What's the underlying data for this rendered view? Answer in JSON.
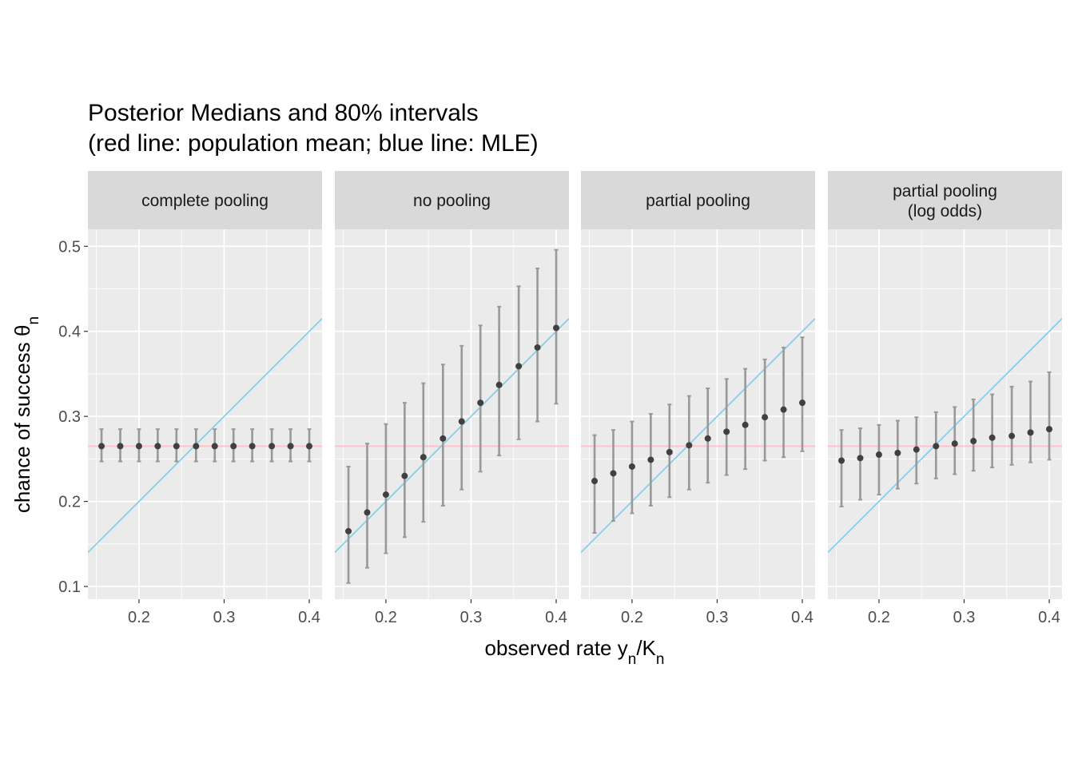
{
  "title": {
    "line1": "Posterior Medians and 80% intervals",
    "line2": "(red line: population mean;  blue line: MLE)"
  },
  "axes": {
    "xlabel": {
      "main": "observed rate y",
      "sub1": "n",
      "mid": "/K",
      "sub2": "n"
    },
    "ylabel": {
      "main": "chance of success θ",
      "sub": "n"
    }
  },
  "colors": {
    "panel_bg": "#ebebeb",
    "strip_bg": "#d9d9d9",
    "grid": "#ffffff",
    "population_mean_line": "#ffc0cb",
    "mle_line": "#87ceeb",
    "interval": "#999999",
    "point": "#404040"
  },
  "chart_data": {
    "type": "scatter",
    "facet_by": "pooling model",
    "xlim": [
      0.14,
      0.415
    ],
    "ylim": [
      0.085,
      0.52
    ],
    "x_ticks": [
      0.2,
      0.3,
      0.4
    ],
    "y_ticks": [
      0.1,
      0.2,
      0.3,
      0.4,
      0.5
    ],
    "grid": true,
    "reference_lines": {
      "population_mean": 0.265,
      "mle": "y = x"
    },
    "x": [
      0.156,
      0.178,
      0.2,
      0.222,
      0.244,
      0.267,
      0.289,
      0.311,
      0.333,
      0.356,
      0.378,
      0.4
    ],
    "panels": [
      {
        "label": "complete pooling",
        "label_line2": "",
        "median": [
          0.265,
          0.265,
          0.265,
          0.265,
          0.265,
          0.265,
          0.265,
          0.265,
          0.265,
          0.265,
          0.265,
          0.265
        ],
        "lower": [
          0.247,
          0.247,
          0.247,
          0.247,
          0.247,
          0.247,
          0.247,
          0.247,
          0.247,
          0.247,
          0.247,
          0.247
        ],
        "upper": [
          0.285,
          0.285,
          0.285,
          0.285,
          0.285,
          0.285,
          0.285,
          0.285,
          0.285,
          0.285,
          0.285,
          0.285
        ]
      },
      {
        "label": "no pooling",
        "label_line2": "",
        "median": [
          0.165,
          0.187,
          0.208,
          0.23,
          0.252,
          0.274,
          0.294,
          0.316,
          0.337,
          0.359,
          0.381,
          0.404
        ],
        "lower": [
          0.104,
          0.122,
          0.139,
          0.158,
          0.176,
          0.195,
          0.214,
          0.235,
          0.254,
          0.273,
          0.294,
          0.315
        ],
        "upper": [
          0.241,
          0.268,
          0.291,
          0.316,
          0.339,
          0.361,
          0.383,
          0.407,
          0.429,
          0.453,
          0.474,
          0.496
        ]
      },
      {
        "label": "partial pooling",
        "label_line2": "",
        "median": [
          0.224,
          0.233,
          0.241,
          0.249,
          0.258,
          0.266,
          0.274,
          0.282,
          0.29,
          0.299,
          0.308,
          0.316
        ],
        "lower": [
          0.163,
          0.177,
          0.186,
          0.195,
          0.205,
          0.214,
          0.222,
          0.231,
          0.238,
          0.248,
          0.252,
          0.259
        ],
        "upper": [
          0.278,
          0.284,
          0.294,
          0.303,
          0.314,
          0.324,
          0.333,
          0.344,
          0.356,
          0.367,
          0.381,
          0.393
        ]
      },
      {
        "label": "partial pooling",
        "label_line2": "(log odds)",
        "median": [
          0.248,
          0.251,
          0.255,
          0.257,
          0.261,
          0.265,
          0.268,
          0.271,
          0.275,
          0.277,
          0.281,
          0.285
        ],
        "lower": [
          0.194,
          0.202,
          0.208,
          0.215,
          0.221,
          0.227,
          0.232,
          0.236,
          0.24,
          0.243,
          0.246,
          0.249
        ],
        "upper": [
          0.284,
          0.286,
          0.29,
          0.295,
          0.299,
          0.305,
          0.311,
          0.32,
          0.326,
          0.335,
          0.341,
          0.352
        ]
      }
    ]
  }
}
